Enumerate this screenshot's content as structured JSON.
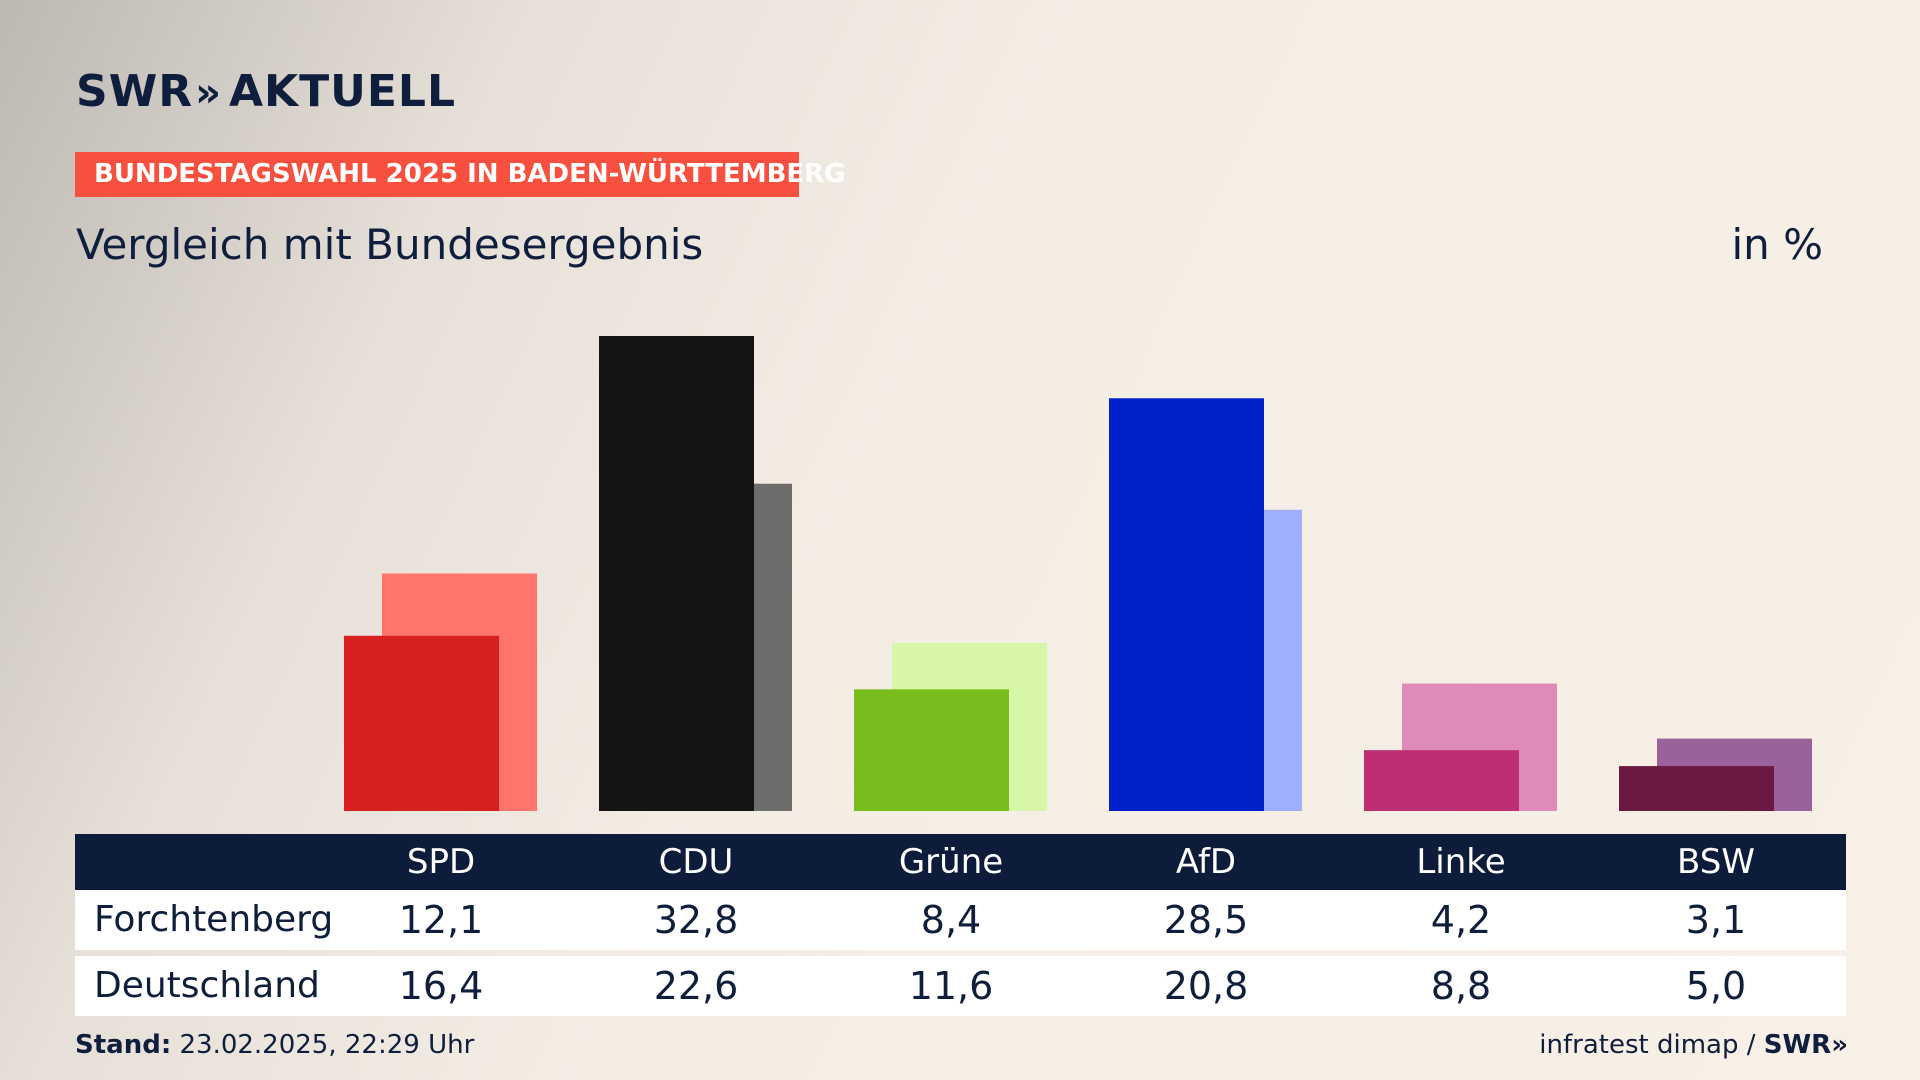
{
  "header": {
    "logo_brand": "SWR",
    "logo_arrows": "»",
    "logo_name": "AKTUELL",
    "badge": "BUNDESTAGSWAHL 2025 IN BADEN-WÜRTTEMBERG",
    "subtitle": "Vergleich mit Bundesergebnis",
    "unit": "in %"
  },
  "chart_data": {
    "type": "bar",
    "title": "Vergleich mit Bundesergebnis",
    "ylabel": "in %",
    "categories": [
      "SPD",
      "CDU",
      "Grüne",
      "AfD",
      "Linke",
      "BSW"
    ],
    "series": [
      {
        "name": "Forchtenberg",
        "values": [
          12.1,
          32.8,
          8.4,
          28.5,
          4.2,
          3.1
        ],
        "labels": [
          "12,1",
          "32,8",
          "8,4",
          "28,5",
          "4,2",
          "3,1"
        ]
      },
      {
        "name": "Deutschland",
        "values": [
          16.4,
          22.6,
          11.6,
          20.8,
          8.8,
          5.0
        ],
        "labels": [
          "16,4",
          "22,6",
          "11,6",
          "20,8",
          "8,8",
          "5,0"
        ]
      }
    ],
    "colors": {
      "primary": [
        "#d7201f",
        "#141414",
        "#79bd1c",
        "#0021c8",
        "#bd2f72",
        "#6b1941"
      ],
      "secondary": [
        "#ff756e",
        "#6e6d6b",
        "#d8f6a8",
        "#9faeff",
        "#df8ab7",
        "#9a629b"
      ]
    },
    "ylim": [
      0,
      32.8
    ],
    "grid": false,
    "legend": "table-below"
  },
  "footer": {
    "stand_label": "Stand:",
    "stand_value": "23.02.2025, 22:29 Uhr",
    "source": "infratest dimap /",
    "source_brand": "SWR",
    "source_arrows": "»"
  }
}
